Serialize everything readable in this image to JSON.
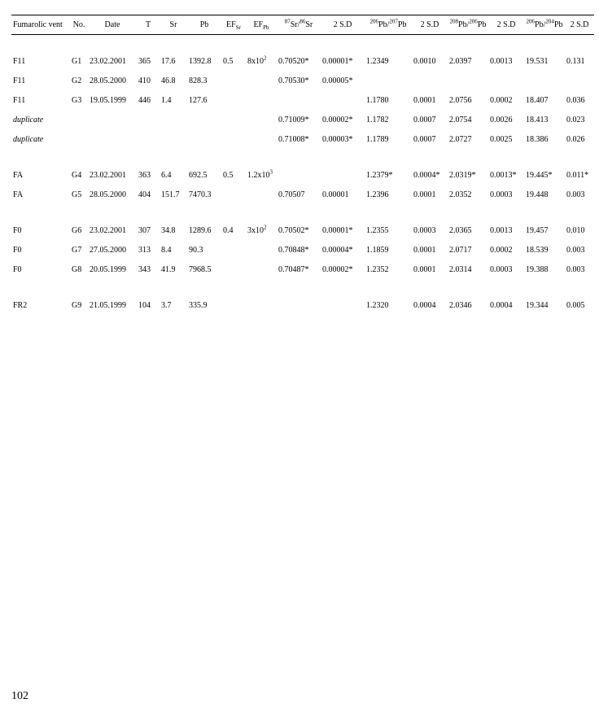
{
  "page_number": "102",
  "table": {
    "headers": {
      "h0": "Fumarolic vent",
      "h1": "No.",
      "h2": "Date",
      "h3": "T",
      "h4": "Sr",
      "h5": "Pb",
      "h6_html": "EF<sub>Sr</sub>",
      "h7_html": "EF<sub>Pb</sub>",
      "h8_html": "<sup>87</sup>Sr/<sup>86</sup>Sr",
      "h9": "2 S.D",
      "h10_html": "<sup>206</sup>Pb/<sup>207</sup>Pb",
      "h11": "2 S.D",
      "h12_html": "<sup>208</sup>Pb/<sup>206</sup>Pb",
      "h13": "2 S.D",
      "h14_html": "<sup>206</sup>Pb/<sup>204</sup>Pb",
      "h15": "2 S.D"
    },
    "rows": [
      {
        "type": "spacer"
      },
      {
        "type": "data",
        "vent": "F11",
        "no": "G1",
        "date": "23.02.2001",
        "T": "365",
        "Sr": "17.6",
        "Pb": "1392.8",
        "EFSr": "0.5",
        "EFPb_html": "8x10<sup>2</sup>",
        "SrSr": "0.70520*",
        "sd1": "0.00001*",
        "Pb67": "1.2349",
        "sd2": "0.0010",
        "Pb86": "2.0397",
        "sd3": "0.0013",
        "Pb64": "19.531",
        "sd4": "0.131"
      },
      {
        "type": "data",
        "vent": "F11",
        "no": "G2",
        "date": "28.05.2000",
        "T": "410",
        "Sr": "46.8",
        "Pb": "828.3",
        "EFSr": "",
        "EFPb_html": "",
        "SrSr": "0.70530*",
        "sd1": "0.00005*",
        "Pb67": "",
        "sd2": "",
        "Pb86": "",
        "sd3": "",
        "Pb64": "",
        "sd4": ""
      },
      {
        "type": "data",
        "vent": "F11",
        "no": "G3",
        "date": "19.05.1999",
        "T": "446",
        "Sr": "1.4",
        "Pb": "127.6",
        "EFSr": "",
        "EFPb_html": "",
        "SrSr": "",
        "sd1": "",
        "Pb67": "1.1780",
        "sd2": "0.0001",
        "Pb86": "2.0756",
        "sd3": "0.0002",
        "Pb64": "18.407",
        "sd4": "0.036"
      },
      {
        "type": "data",
        "vent_italic": true,
        "vent": "duplicate",
        "no": "",
        "date": "",
        "T": "",
        "Sr": "",
        "Pb": "",
        "EFSr": "",
        "EFPb_html": "",
        "SrSr": "0.71009*",
        "sd1": "0.00002*",
        "Pb67": "1.1782",
        "sd2": "0.0007",
        "Pb86": "2.0754",
        "sd3": "0.0026",
        "Pb64": "18.413",
        "sd4": "0.023"
      },
      {
        "type": "data",
        "vent_italic": true,
        "vent": "duplicate",
        "no": "",
        "date": "",
        "T": "",
        "Sr": "",
        "Pb": "",
        "EFSr": "",
        "EFPb_html": "",
        "SrSr": "0.71008*",
        "sd1": "0.00003*",
        "Pb67": "1.1789",
        "sd2": "0.0007",
        "Pb86": "2.0727",
        "sd3": "0.0025",
        "Pb64": "18.386",
        "sd4": "0.026"
      },
      {
        "type": "spacer"
      },
      {
        "type": "data",
        "vent": "FA",
        "no": "G4",
        "date": "23.02.2001",
        "T": "363",
        "Sr": "6.4",
        "Pb": "692.5",
        "EFSr": "0.5",
        "EFPb_html": "1.2x10<sup>3</sup>",
        "SrSr": "",
        "sd1": "",
        "Pb67": "1.2379*",
        "sd2": "0.0004*",
        "Pb86": "2.0319*",
        "sd3": "0.0013*",
        "Pb64": "19.445*",
        "sd4": "0.011*"
      },
      {
        "type": "data",
        "vent": "FA",
        "no": "G5",
        "date": "28.05.2000",
        "T": "404",
        "Sr": "151.7",
        "Pb": "7470.3",
        "EFSr": "",
        "EFPb_html": "",
        "SrSr": "0.70507",
        "sd1": "0.00001",
        "Pb67": "1.2396",
        "sd2": "0.0001",
        "Pb86": "2.0352",
        "sd3": "0.0003",
        "Pb64": "19.448",
        "sd4": "0.003"
      },
      {
        "type": "spacer"
      },
      {
        "type": "data",
        "vent": "F0",
        "no": "G6",
        "date": "23.02.2001",
        "T": "307",
        "Sr": "34.8",
        "Pb": "1289.6",
        "EFSr": "0.4",
        "EFPb_html": "3x10<sup>2</sup>",
        "SrSr": "0.70502*",
        "sd1": "0.00001*",
        "Pb67": "1.2355",
        "sd2": "0.0003",
        "Pb86": "2.0365",
        "sd3": "0.0013",
        "Pb64": "19.457",
        "sd4": "0.010"
      },
      {
        "type": "data",
        "vent": "F0",
        "no": "G7",
        "date": "27.05.2000",
        "T": "313",
        "Sr": "8.4",
        "Pb": "90.3",
        "EFSr": "",
        "EFPb_html": "",
        "SrSr": "0.70848*",
        "sd1": "0.00004*",
        "Pb67": "1.1859",
        "sd2": "0.0001",
        "Pb86": "2.0717",
        "sd3": "0.0002",
        "Pb64": "18.539",
        "sd4": "0.003"
      },
      {
        "type": "data",
        "vent": "F0",
        "no": "G8",
        "date": "20.05.1999",
        "T": "343",
        "Sr": "41.9",
        "Pb": "7968.5",
        "EFSr": "",
        "EFPb_html": "",
        "SrSr": "0.70487*",
        "sd1": "0.00002*",
        "Pb67": "1.2352",
        "sd2": "0.0001",
        "Pb86": "2.0314",
        "sd3": "0.0003",
        "Pb64": "19.388",
        "sd4": "0.003"
      },
      {
        "type": "spacer"
      },
      {
        "type": "data",
        "vent": "FR2",
        "no": "G9",
        "date": "21.05.1999",
        "T": "104",
        "Sr": "3.7",
        "Pb": "335.9",
        "EFSr": "",
        "EFPb_html": "",
        "SrSr": "",
        "sd1": "",
        "Pb67": "1.2320",
        "sd2": "0.0004",
        "Pb86": "2.0346",
        "sd3": "0.0004",
        "Pb64": "19.344",
        "sd4": "0.005"
      }
    ]
  }
}
